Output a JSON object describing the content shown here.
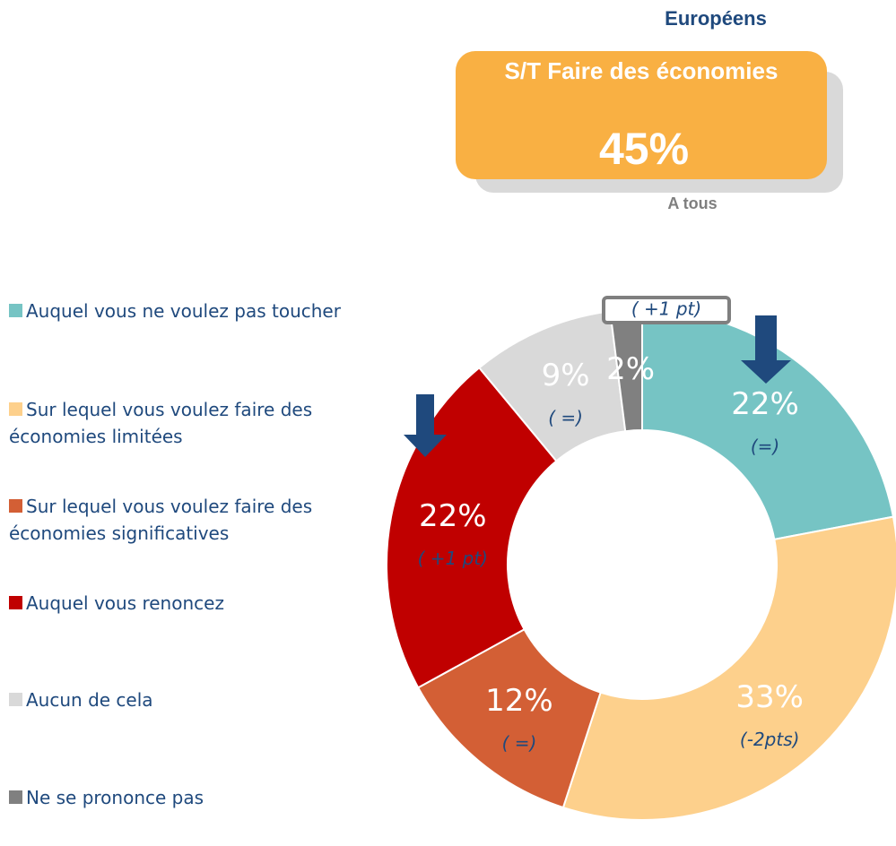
{
  "header": {
    "group": "Européens",
    "box_title": "S/T Faire des économies",
    "box_value": "45%",
    "subtitle": "A tous"
  },
  "chart_data": {
    "type": "pie",
    "donut": true,
    "categories": [
      "Auquel vous ne voulez pas toucher",
      "Sur lequel vous voulez faire des économies limitées",
      "Sur lequel vous voulez faire des économies significatives",
      "Auquel vous renoncez",
      "Aucun de cela",
      "Ne se prononce pas"
    ],
    "values": [
      22,
      33,
      12,
      22,
      9,
      2
    ],
    "value_labels": [
      "22%",
      "33%",
      "12%",
      "22%",
      "9%",
      "2%"
    ],
    "colors": [
      "#76c4c4",
      "#fdd08c",
      "#d35f35",
      "#c00000",
      "#d9d9d9",
      "#808080"
    ],
    "changes": [
      "(=)",
      "(-2pts)",
      "( =)",
      "( +1 pt)",
      "( =)",
      "( +1 pt)"
    ]
  }
}
